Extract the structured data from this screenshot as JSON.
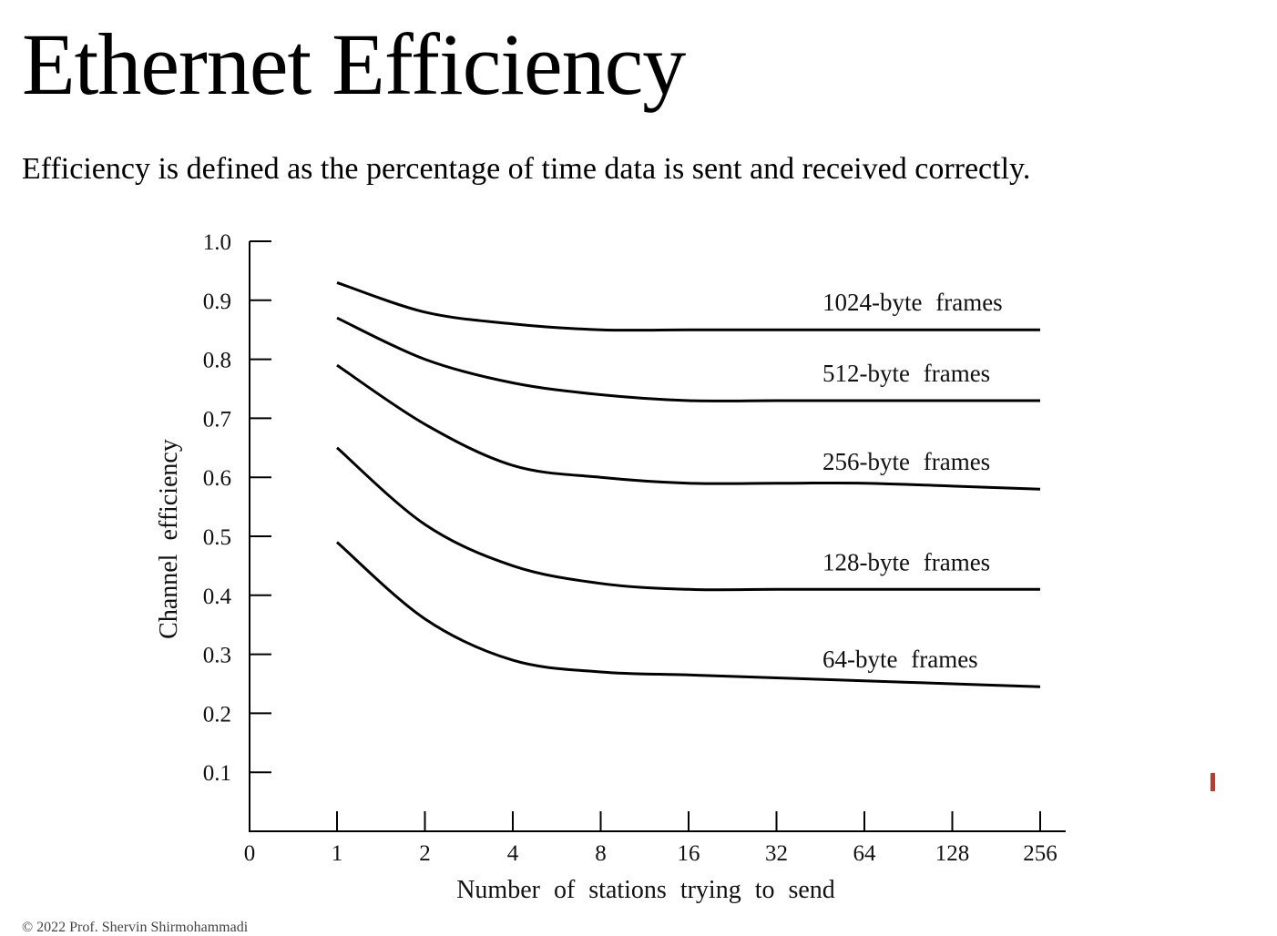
{
  "slide": {
    "title": "Ethernet Efficiency",
    "subtitle": "Efficiency is defined as the percentage of time data is sent and received correctly.",
    "footer": "© 2022 Prof. Shervin Shirmohammadi"
  },
  "chart_data": {
    "type": "line",
    "title": "",
    "xlabel": "Number of stations trying to send",
    "ylabel": "Channel efficiency",
    "x_tick_labels": [
      "0",
      "1",
      "2",
      "4",
      "8",
      "16",
      "32",
      "64",
      "128",
      "256"
    ],
    "y_tick_labels": [
      "0.1",
      "0.2",
      "0.3",
      "0.4",
      "0.5",
      "0.6",
      "0.7",
      "0.8",
      "0.9",
      "1.0"
    ],
    "ylim": [
      0,
      1.0
    ],
    "x_scale": "log2",
    "grid": false,
    "legend": "none (inline labels at right end of each curve)",
    "x": [
      1,
      2,
      4,
      8,
      16,
      32,
      64,
      128,
      256
    ],
    "series": [
      {
        "name": "1024-byte frames",
        "values": [
          0.93,
          0.88,
          0.86,
          0.85,
          0.85,
          0.85,
          0.85,
          0.85,
          0.85
        ]
      },
      {
        "name": "512-byte frames",
        "values": [
          0.87,
          0.8,
          0.76,
          0.74,
          0.73,
          0.73,
          0.73,
          0.73,
          0.73
        ]
      },
      {
        "name": "256-byte frames",
        "values": [
          0.79,
          0.69,
          0.62,
          0.6,
          0.59,
          0.59,
          0.59,
          0.585,
          0.58
        ]
      },
      {
        "name": "128-byte frames",
        "values": [
          0.65,
          0.52,
          0.45,
          0.42,
          0.41,
          0.41,
          0.41,
          0.41,
          0.41
        ]
      },
      {
        "name": "64-byte frames",
        "values": [
          0.49,
          0.36,
          0.29,
          0.27,
          0.265,
          0.26,
          0.255,
          0.25,
          0.245
        ]
      }
    ]
  }
}
